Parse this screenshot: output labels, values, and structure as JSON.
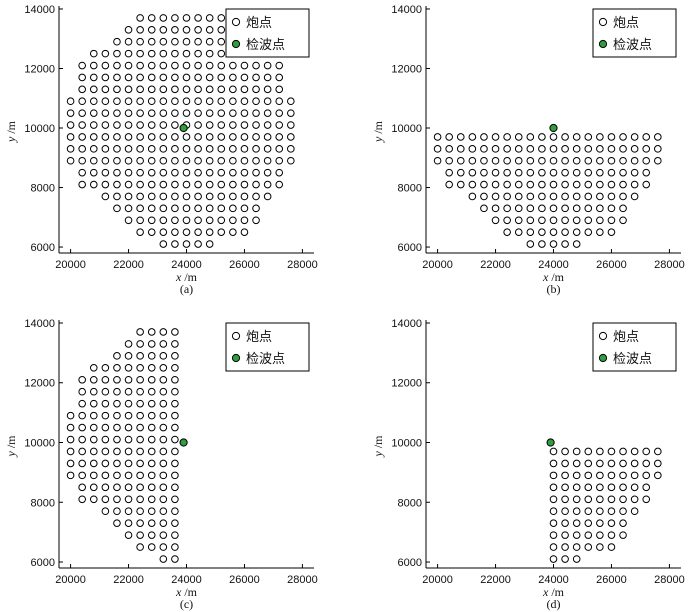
{
  "chart_data": [
    {
      "type": "scatter",
      "panel_label": "(a)",
      "xlabel": "x",
      "xlabel_unit": "/m",
      "ylabel": "y",
      "ylabel_unit": "/m",
      "xlim": [
        19600,
        28400
      ],
      "ylim": [
        5800,
        14100
      ],
      "xticks": [
        "20000",
        "22000",
        "24000",
        "26000",
        "28000"
      ],
      "yticks": [
        "6000",
        "8000",
        "10000",
        "12000",
        "14000"
      ],
      "legend": {
        "placement": "top-right",
        "entries": [
          "炮点",
          "检波点"
        ]
      },
      "shot_region": "full",
      "receiver": {
        "x": 23900,
        "y": 10000
      },
      "colors": {
        "shot_edge": "#000000",
        "shot_fill": "#ffffff",
        "receiver_fill": "#2e9e3e"
      }
    },
    {
      "type": "scatter",
      "panel_label": "(b)",
      "xlabel": "x",
      "xlabel_unit": "/m",
      "ylabel": "y",
      "ylabel_unit": "/m",
      "xlim": [
        19600,
        28400
      ],
      "ylim": [
        5800,
        14100
      ],
      "xticks": [
        "20000",
        "22000",
        "24000",
        "26000",
        "28000"
      ],
      "yticks": [
        "6000",
        "8000",
        "10000",
        "12000",
        "14000"
      ],
      "legend": {
        "placement": "top-right",
        "entries": [
          "炮点",
          "检波点"
        ]
      },
      "shot_region": "y<10000",
      "receiver": {
        "x": 24000,
        "y": 10000
      },
      "colors": {
        "shot_edge": "#000000",
        "shot_fill": "#ffffff",
        "receiver_fill": "#2e9e3e"
      }
    },
    {
      "type": "scatter",
      "panel_label": "(c)",
      "xlabel": "x",
      "xlabel_unit": "/m",
      "ylabel": "y",
      "ylabel_unit": "/m",
      "xlim": [
        19600,
        28400
      ],
      "ylim": [
        5800,
        14100
      ],
      "xticks": [
        "20000",
        "22000",
        "24000",
        "26000",
        "28000"
      ],
      "yticks": [
        "6000",
        "8000",
        "10000",
        "12000",
        "14000"
      ],
      "legend": {
        "placement": "top-right",
        "entries": [
          "炮点",
          "检波点"
        ]
      },
      "shot_region": "x<24000",
      "receiver": {
        "x": 23900,
        "y": 10000
      },
      "colors": {
        "shot_edge": "#000000",
        "shot_fill": "#ffffff",
        "receiver_fill": "#2e9e3e"
      }
    },
    {
      "type": "scatter",
      "panel_label": "(d)",
      "xlabel": "x",
      "xlabel_unit": "/m",
      "ylabel": "y",
      "ylabel_unit": "/m",
      "xlim": [
        19600,
        28400
      ],
      "ylim": [
        5800,
        14100
      ],
      "xticks": [
        "20000",
        "22000",
        "24000",
        "26000",
        "28000"
      ],
      "yticks": [
        "6000",
        "8000",
        "10000",
        "12000",
        "14000"
      ],
      "legend": {
        "placement": "top-right",
        "entries": [
          "炮点",
          "检波点"
        ]
      },
      "shot_region": "x>=24000,y<10000",
      "receiver": {
        "x": 23900,
        "y": 10000
      },
      "colors": {
        "shot_edge": "#000000",
        "shot_fill": "#ffffff",
        "receiver_fill": "#2e9e3e"
      }
    }
  ],
  "shot_grid": {
    "x_start": 20000,
    "x_step": 400,
    "x_count": 20,
    "rows": [
      {
        "y": 6100,
        "cols": [
          8,
          9,
          10,
          11,
          12
        ]
      },
      {
        "y": 6500,
        "cols": [
          6,
          7,
          8,
          9,
          10,
          11,
          12,
          13,
          14,
          15
        ]
      },
      {
        "y": 6900,
        "cols": [
          5,
          6,
          7,
          8,
          9,
          10,
          11,
          12,
          13,
          14,
          15,
          16
        ]
      },
      {
        "y": 7300,
        "cols": [
          4,
          5,
          6,
          7,
          8,
          9,
          10,
          11,
          12,
          13,
          14,
          15,
          16
        ]
      },
      {
        "y": 7700,
        "cols": [
          3,
          4,
          5,
          6,
          7,
          8,
          9,
          10,
          11,
          12,
          13,
          14,
          15,
          16,
          17
        ]
      },
      {
        "y": 8100,
        "cols": [
          1,
          2,
          3,
          4,
          5,
          6,
          7,
          8,
          9,
          10,
          11,
          12,
          13,
          14,
          15,
          16,
          17,
          18
        ]
      },
      {
        "y": 8500,
        "cols": [
          1,
          2,
          3,
          4,
          5,
          6,
          7,
          8,
          9,
          10,
          11,
          12,
          13,
          14,
          15,
          16,
          17,
          18
        ]
      },
      {
        "y": 8900,
        "cols": [
          0,
          1,
          2,
          3,
          4,
          5,
          6,
          7,
          8,
          9,
          10,
          11,
          12,
          13,
          14,
          15,
          16,
          17,
          18,
          19
        ]
      },
      {
        "y": 9300,
        "cols": [
          0,
          1,
          2,
          3,
          4,
          5,
          6,
          7,
          8,
          9,
          10,
          11,
          12,
          13,
          14,
          15,
          16,
          17,
          18,
          19
        ]
      },
      {
        "y": 9700,
        "cols": [
          0,
          1,
          2,
          3,
          4,
          5,
          6,
          7,
          8,
          9,
          10,
          11,
          12,
          13,
          14,
          15,
          16,
          17,
          18,
          19
        ]
      },
      {
        "y": 10100,
        "cols": [
          0,
          1,
          2,
          3,
          4,
          5,
          6,
          7,
          8,
          9,
          10,
          11,
          12,
          13,
          14,
          15,
          16,
          17,
          18,
          19
        ]
      },
      {
        "y": 10500,
        "cols": [
          0,
          1,
          2,
          3,
          4,
          5,
          6,
          7,
          8,
          9,
          10,
          11,
          12,
          13,
          14,
          15,
          16,
          17,
          18,
          19
        ]
      },
      {
        "y": 10900,
        "cols": [
          0,
          1,
          2,
          3,
          4,
          5,
          6,
          7,
          8,
          9,
          10,
          11,
          12,
          13,
          14,
          15,
          16,
          17,
          18,
          19
        ]
      },
      {
        "y": 11300,
        "cols": [
          1,
          2,
          3,
          4,
          5,
          6,
          7,
          8,
          9,
          10,
          11,
          12,
          13,
          14,
          15,
          16,
          17,
          18
        ]
      },
      {
        "y": 11700,
        "cols": [
          1,
          2,
          3,
          4,
          5,
          6,
          7,
          8,
          9,
          10,
          11,
          12,
          13,
          14,
          15,
          16,
          17,
          18
        ]
      },
      {
        "y": 12100,
        "cols": [
          1,
          2,
          3,
          4,
          5,
          6,
          7,
          8,
          9,
          10,
          11,
          12,
          13,
          14,
          15,
          16,
          17,
          18
        ]
      },
      {
        "y": 12500,
        "cols": [
          2,
          3,
          4,
          5,
          6,
          7,
          8,
          9,
          10,
          11,
          12,
          13,
          14,
          15,
          16,
          17
        ]
      },
      {
        "y": 12900,
        "cols": [
          4,
          5,
          6,
          7,
          8,
          9,
          10,
          11,
          12,
          13,
          14,
          15,
          16
        ]
      },
      {
        "y": 13300,
        "cols": [
          5,
          6,
          7,
          8,
          9,
          10,
          11,
          12,
          13,
          14
        ]
      },
      {
        "y": 13700,
        "cols": [
          6,
          7,
          8,
          9,
          10,
          11,
          12,
          13
        ]
      }
    ]
  }
}
